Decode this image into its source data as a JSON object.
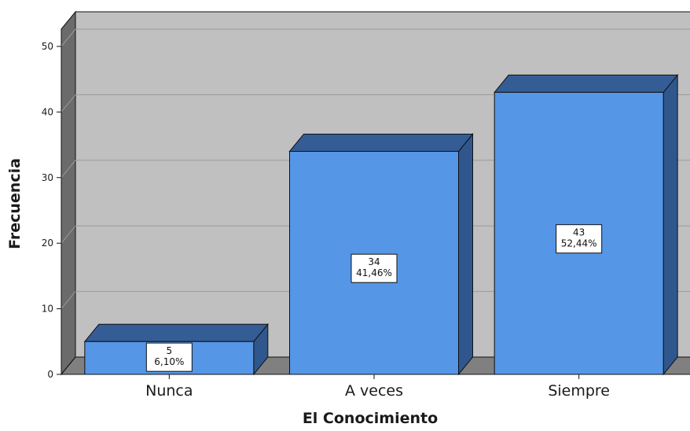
{
  "chart_data": {
    "type": "bar",
    "categories": [
      "Nunca",
      "A veces",
      "Siempre"
    ],
    "values": [
      5,
      34,
      43
    ],
    "percent_labels": [
      "6,10%",
      "41,46%",
      "52,44%"
    ],
    "count_labels": [
      "5",
      "34",
      "43"
    ],
    "xlabel": "El Conocimiento",
    "ylabel": "Frecuencia",
    "ylim": [
      0,
      50
    ],
    "yticks": [
      0,
      10,
      20,
      30,
      40,
      50
    ],
    "ytick_labels": [
      "0",
      "10",
      "20",
      "30",
      "40",
      "50"
    ],
    "grid": true,
    "style": "3d",
    "colors": {
      "bar_front": "#5596e6",
      "bar_top": "#345d95",
      "bar_side": "#2f578d",
      "back_wall": "#c0c0c0",
      "floor": "#808080",
      "left_wall": "#6b6b6b",
      "gridline": "#9a9a9a"
    }
  }
}
